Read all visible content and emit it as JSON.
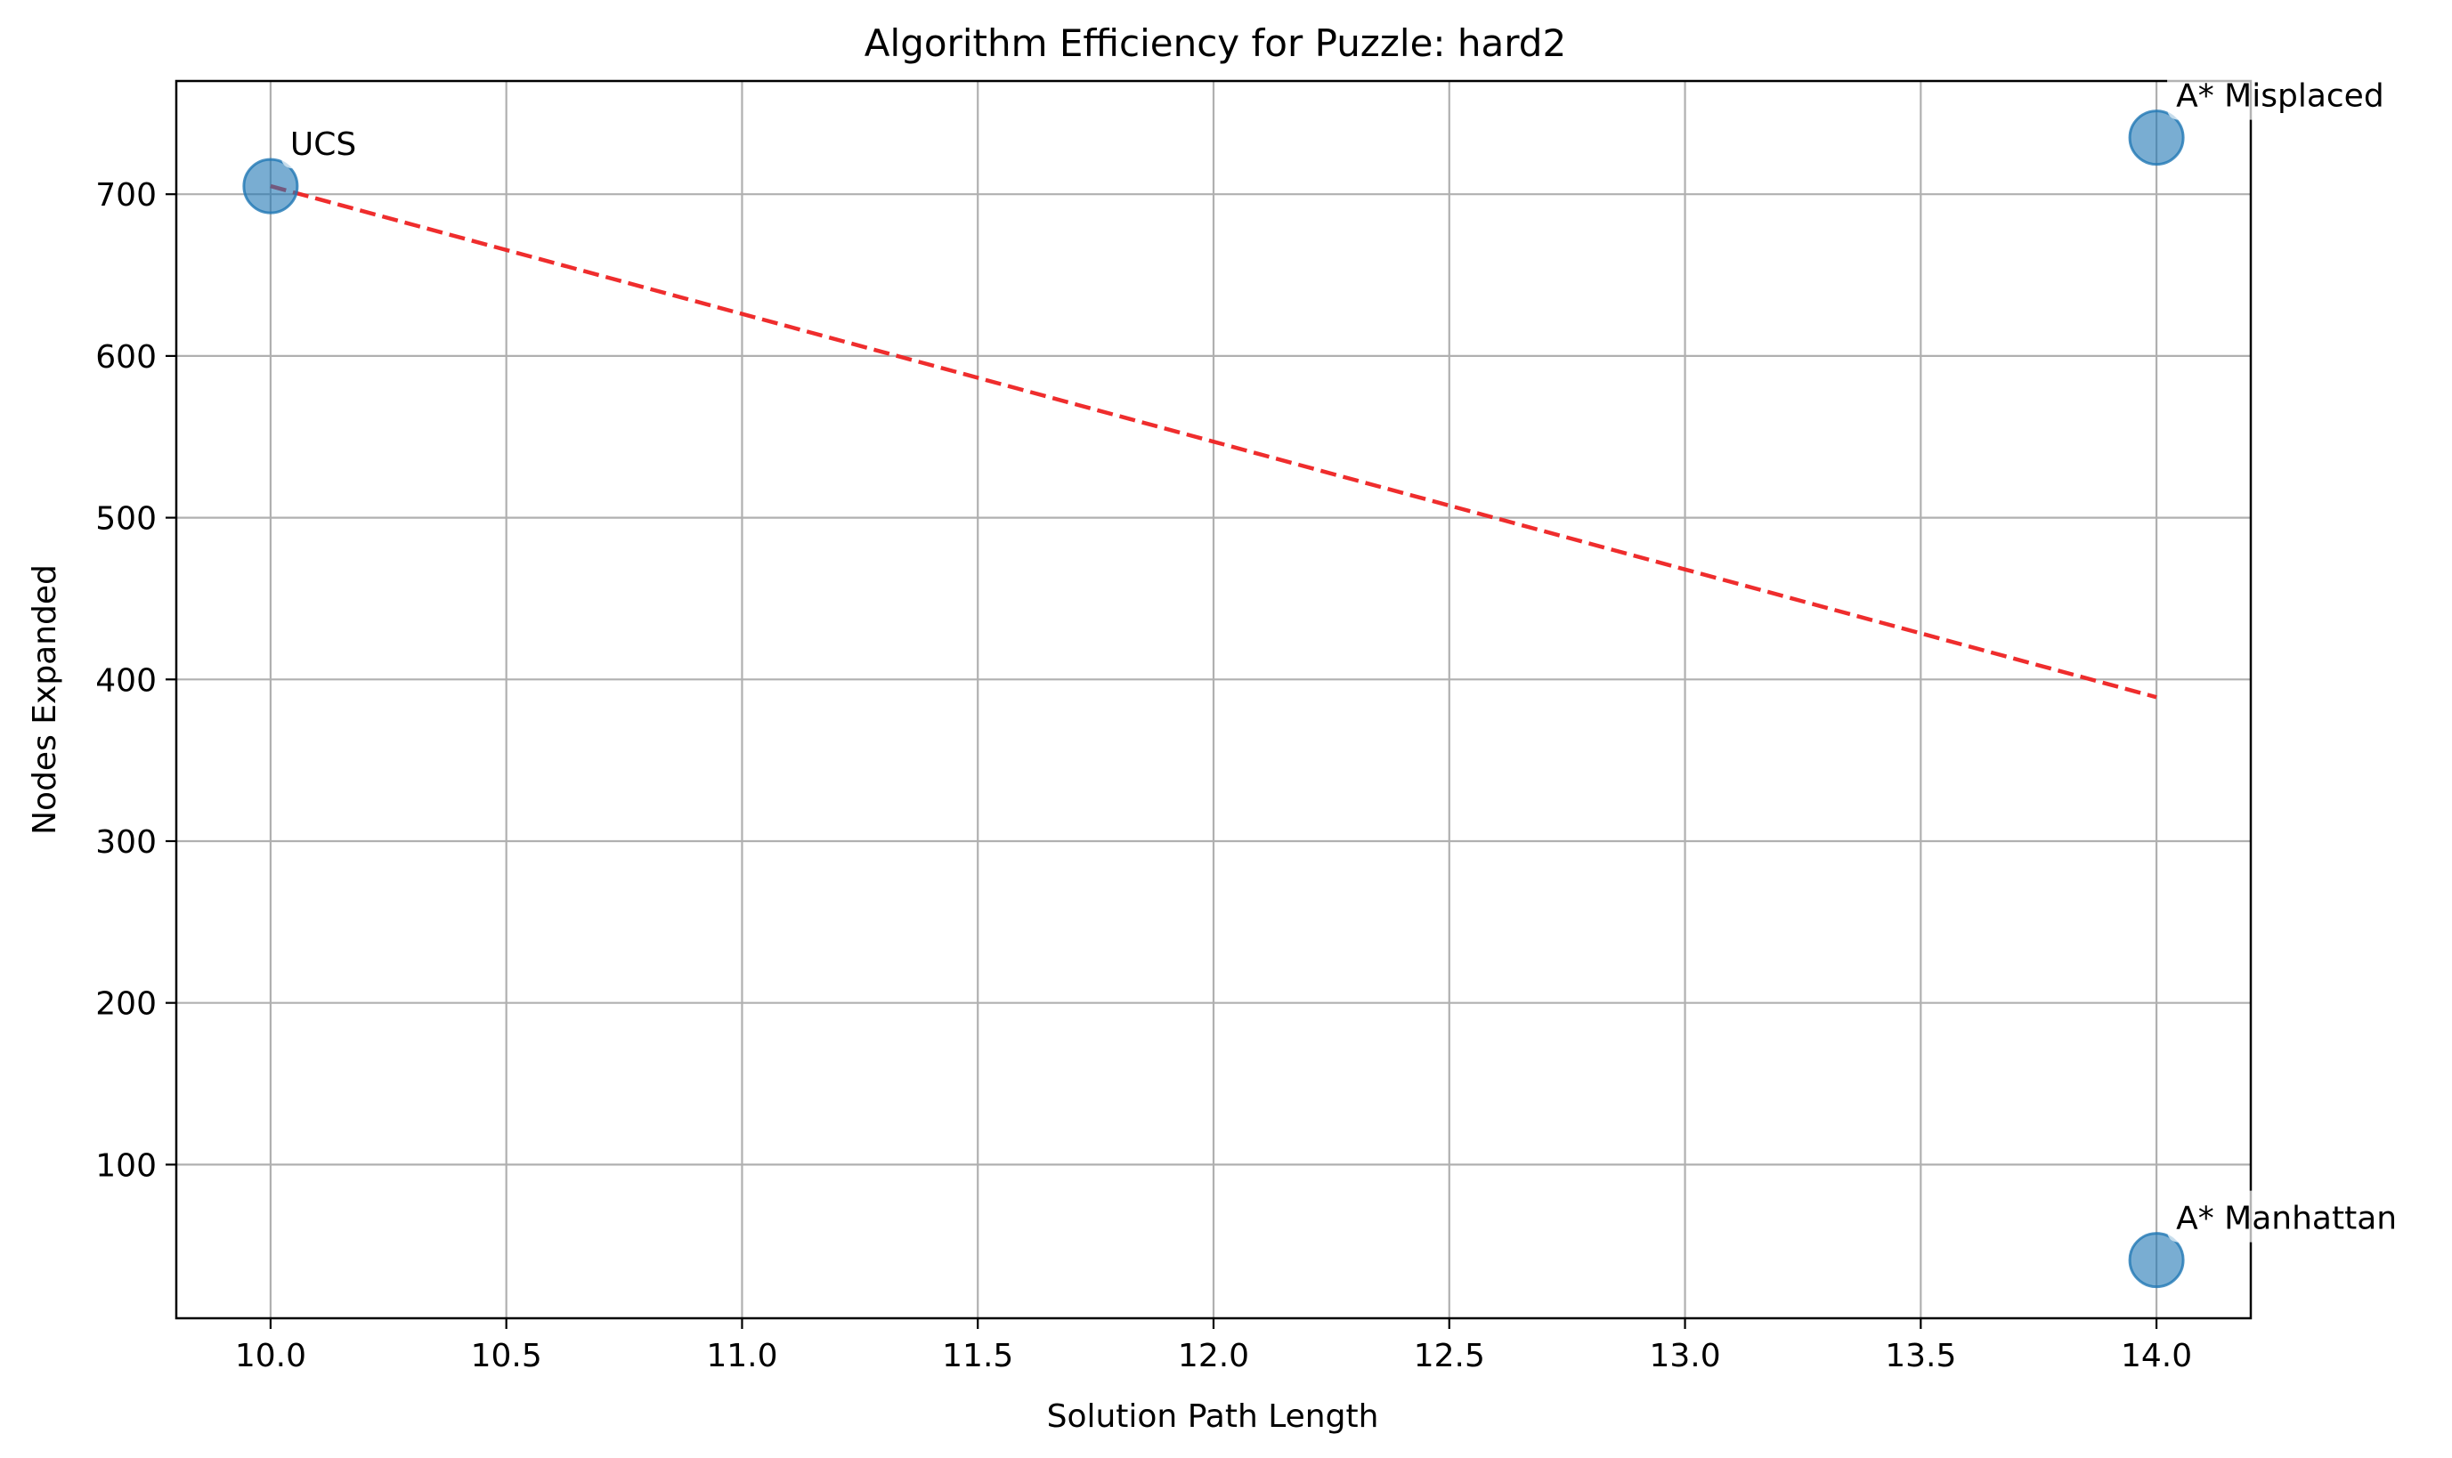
{
  "chart_data": {
    "type": "scatter",
    "title": "Algorithm Efficiency for Puzzle: hard2",
    "xlabel": "Solution Path Length",
    "ylabel": "Nodes Expanded",
    "xlim": [
      9.8,
      14.2
    ],
    "ylim": [
      5,
      770
    ],
    "xticks": [
      10.0,
      10.5,
      11.0,
      11.5,
      12.0,
      12.5,
      13.0,
      13.5,
      14.0
    ],
    "xtick_labels": [
      "10.0",
      "10.5",
      "11.0",
      "11.5",
      "12.0",
      "12.5",
      "13.0",
      "13.5",
      "14.0"
    ],
    "yticks": [
      100,
      200,
      300,
      400,
      500,
      600,
      700
    ],
    "ytick_labels": [
      "100",
      "200",
      "300",
      "400",
      "500",
      "600",
      "700"
    ],
    "grid": true,
    "points": [
      {
        "label": "UCS",
        "x": 10,
        "y": 705
      },
      {
        "label": "A* Misplaced",
        "x": 14,
        "y": 735
      },
      {
        "label": "A* Manhattan",
        "x": 14,
        "y": 41
      }
    ],
    "trendline": {
      "x": [
        10,
        14
      ],
      "y": [
        705,
        389
      ],
      "style": "dashed"
    },
    "colors": {
      "points": "#1f77b4",
      "trendline": "#ee2222",
      "grid": "#b0b0b0"
    }
  }
}
